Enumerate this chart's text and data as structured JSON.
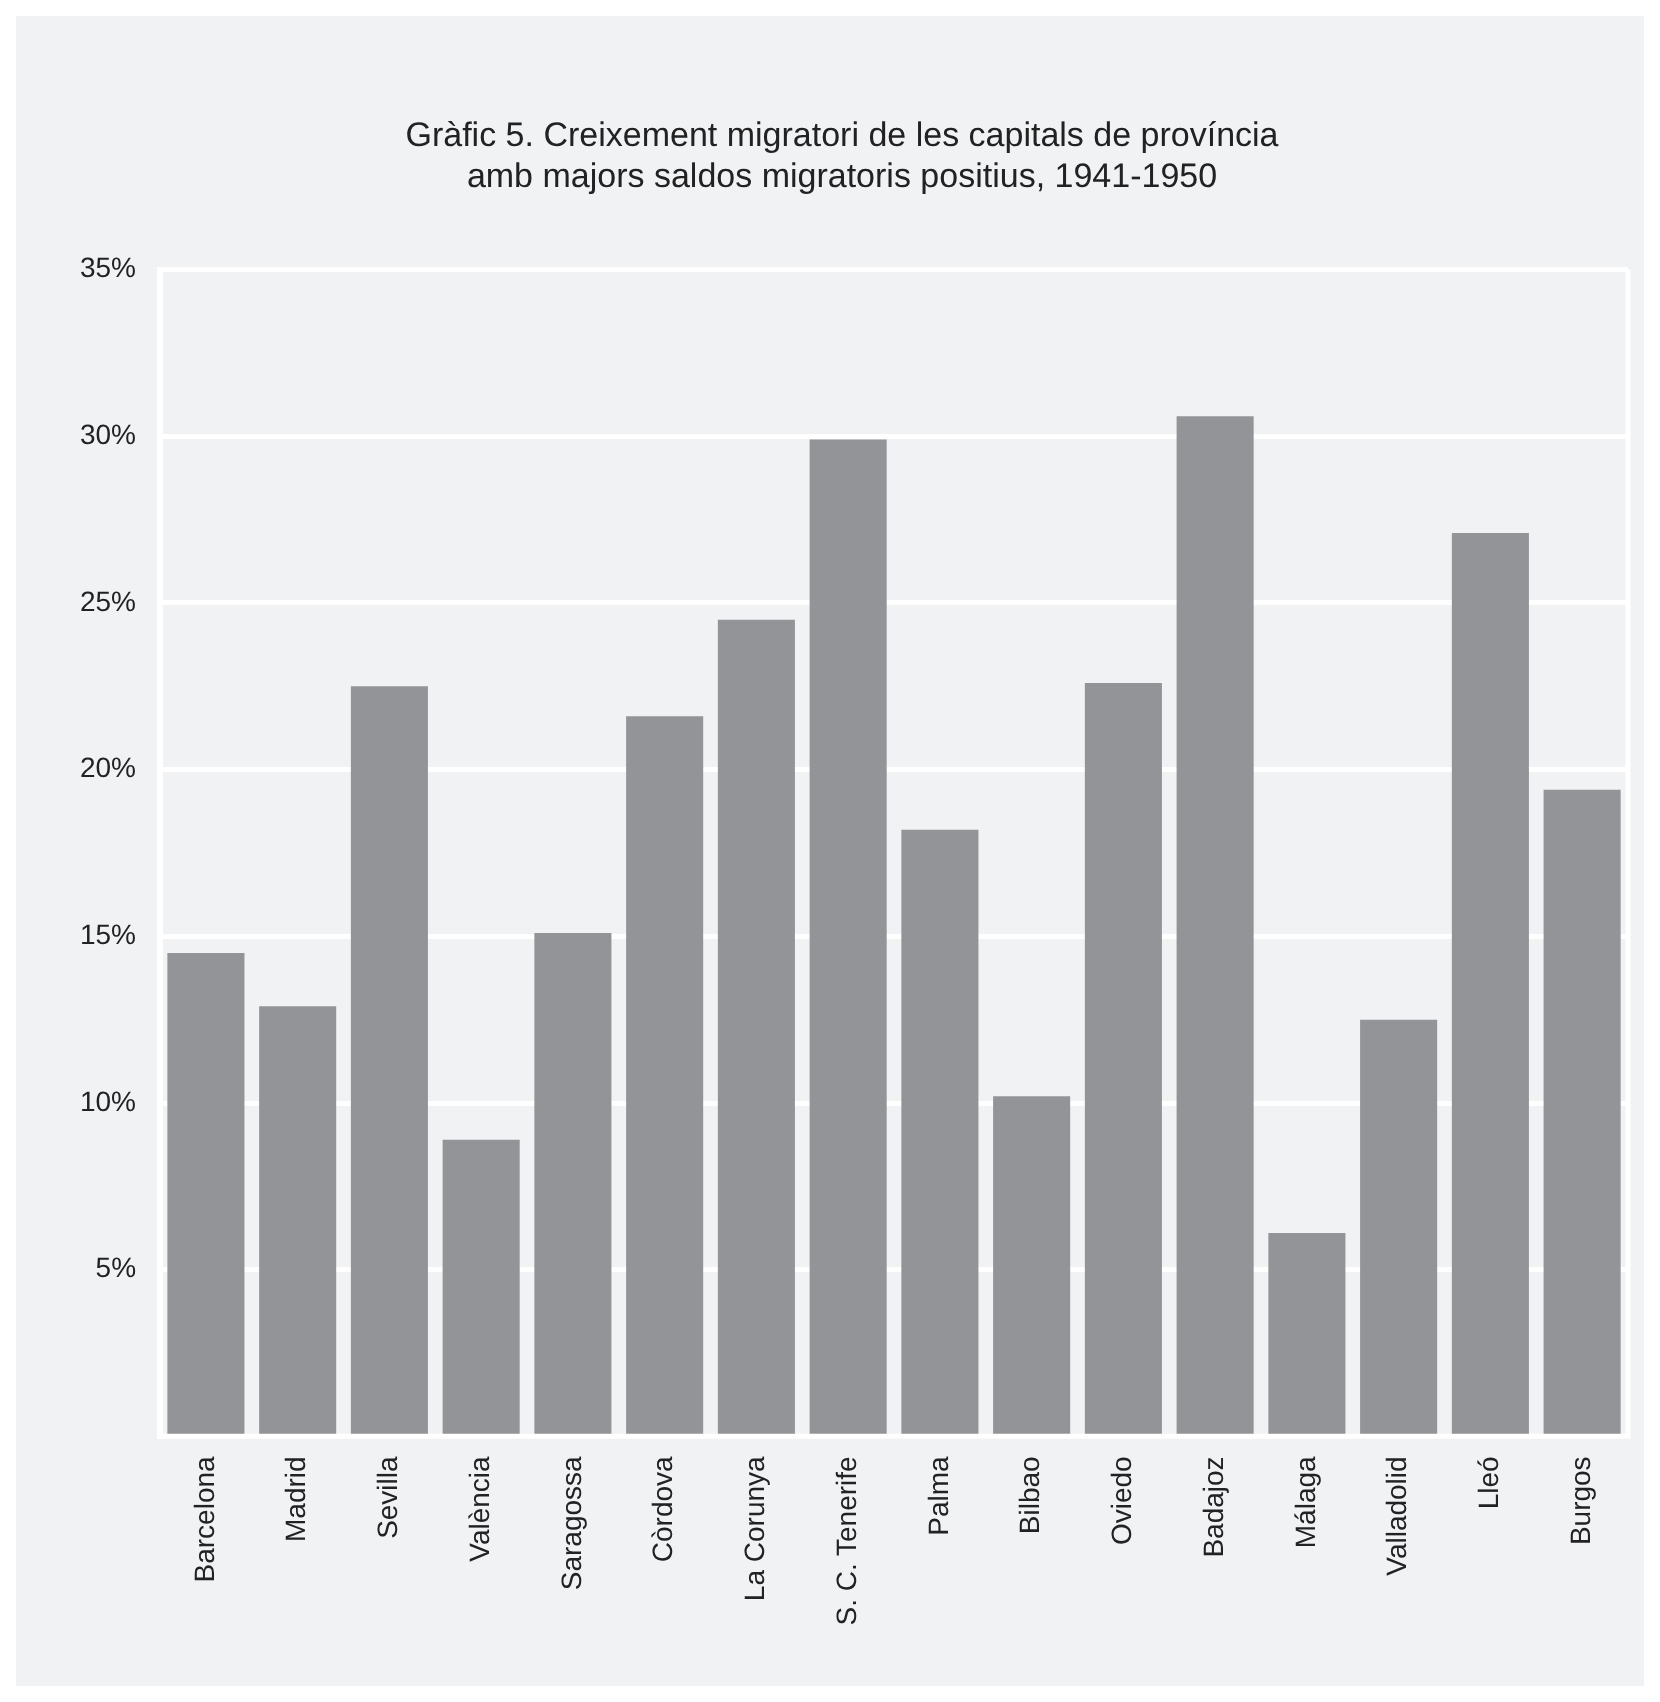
{
  "chart_data": {
    "type": "bar",
    "title": [
      "Gràfic 5. Creixement migratori de les capitals de província",
      "amb majors saldos migratoris positius, 1941-1950"
    ],
    "categories": [
      "Barcelona",
      "Madrid",
      "Sevilla",
      "València",
      "Saragossa",
      "Còrdova",
      "La Corunya",
      "S. C. Tenerife",
      "Palma",
      "Bilbao",
      "Oviedo",
      "Badajoz",
      "Málaga",
      "Valladolid",
      "Lleó",
      "Burgos"
    ],
    "values": [
      14.5,
      12.9,
      22.5,
      8.9,
      15.1,
      21.6,
      24.5,
      29.9,
      18.2,
      10.2,
      22.6,
      30.6,
      6.1,
      12.5,
      27.1,
      19.4
    ],
    "color": "#939497",
    "ylim": [
      0,
      35
    ],
    "yticks": [
      {
        "value": 5,
        "label": "5%"
      },
      {
        "value": 10,
        "label": "10%"
      },
      {
        "value": 15,
        "label": "15%"
      },
      {
        "value": 20,
        "label": "20%"
      },
      {
        "value": 25,
        "label": "25%"
      },
      {
        "value": 30,
        "label": "30%"
      },
      {
        "value": 35,
        "label": "35%"
      }
    ],
    "grid": "y",
    "legend": false
  }
}
